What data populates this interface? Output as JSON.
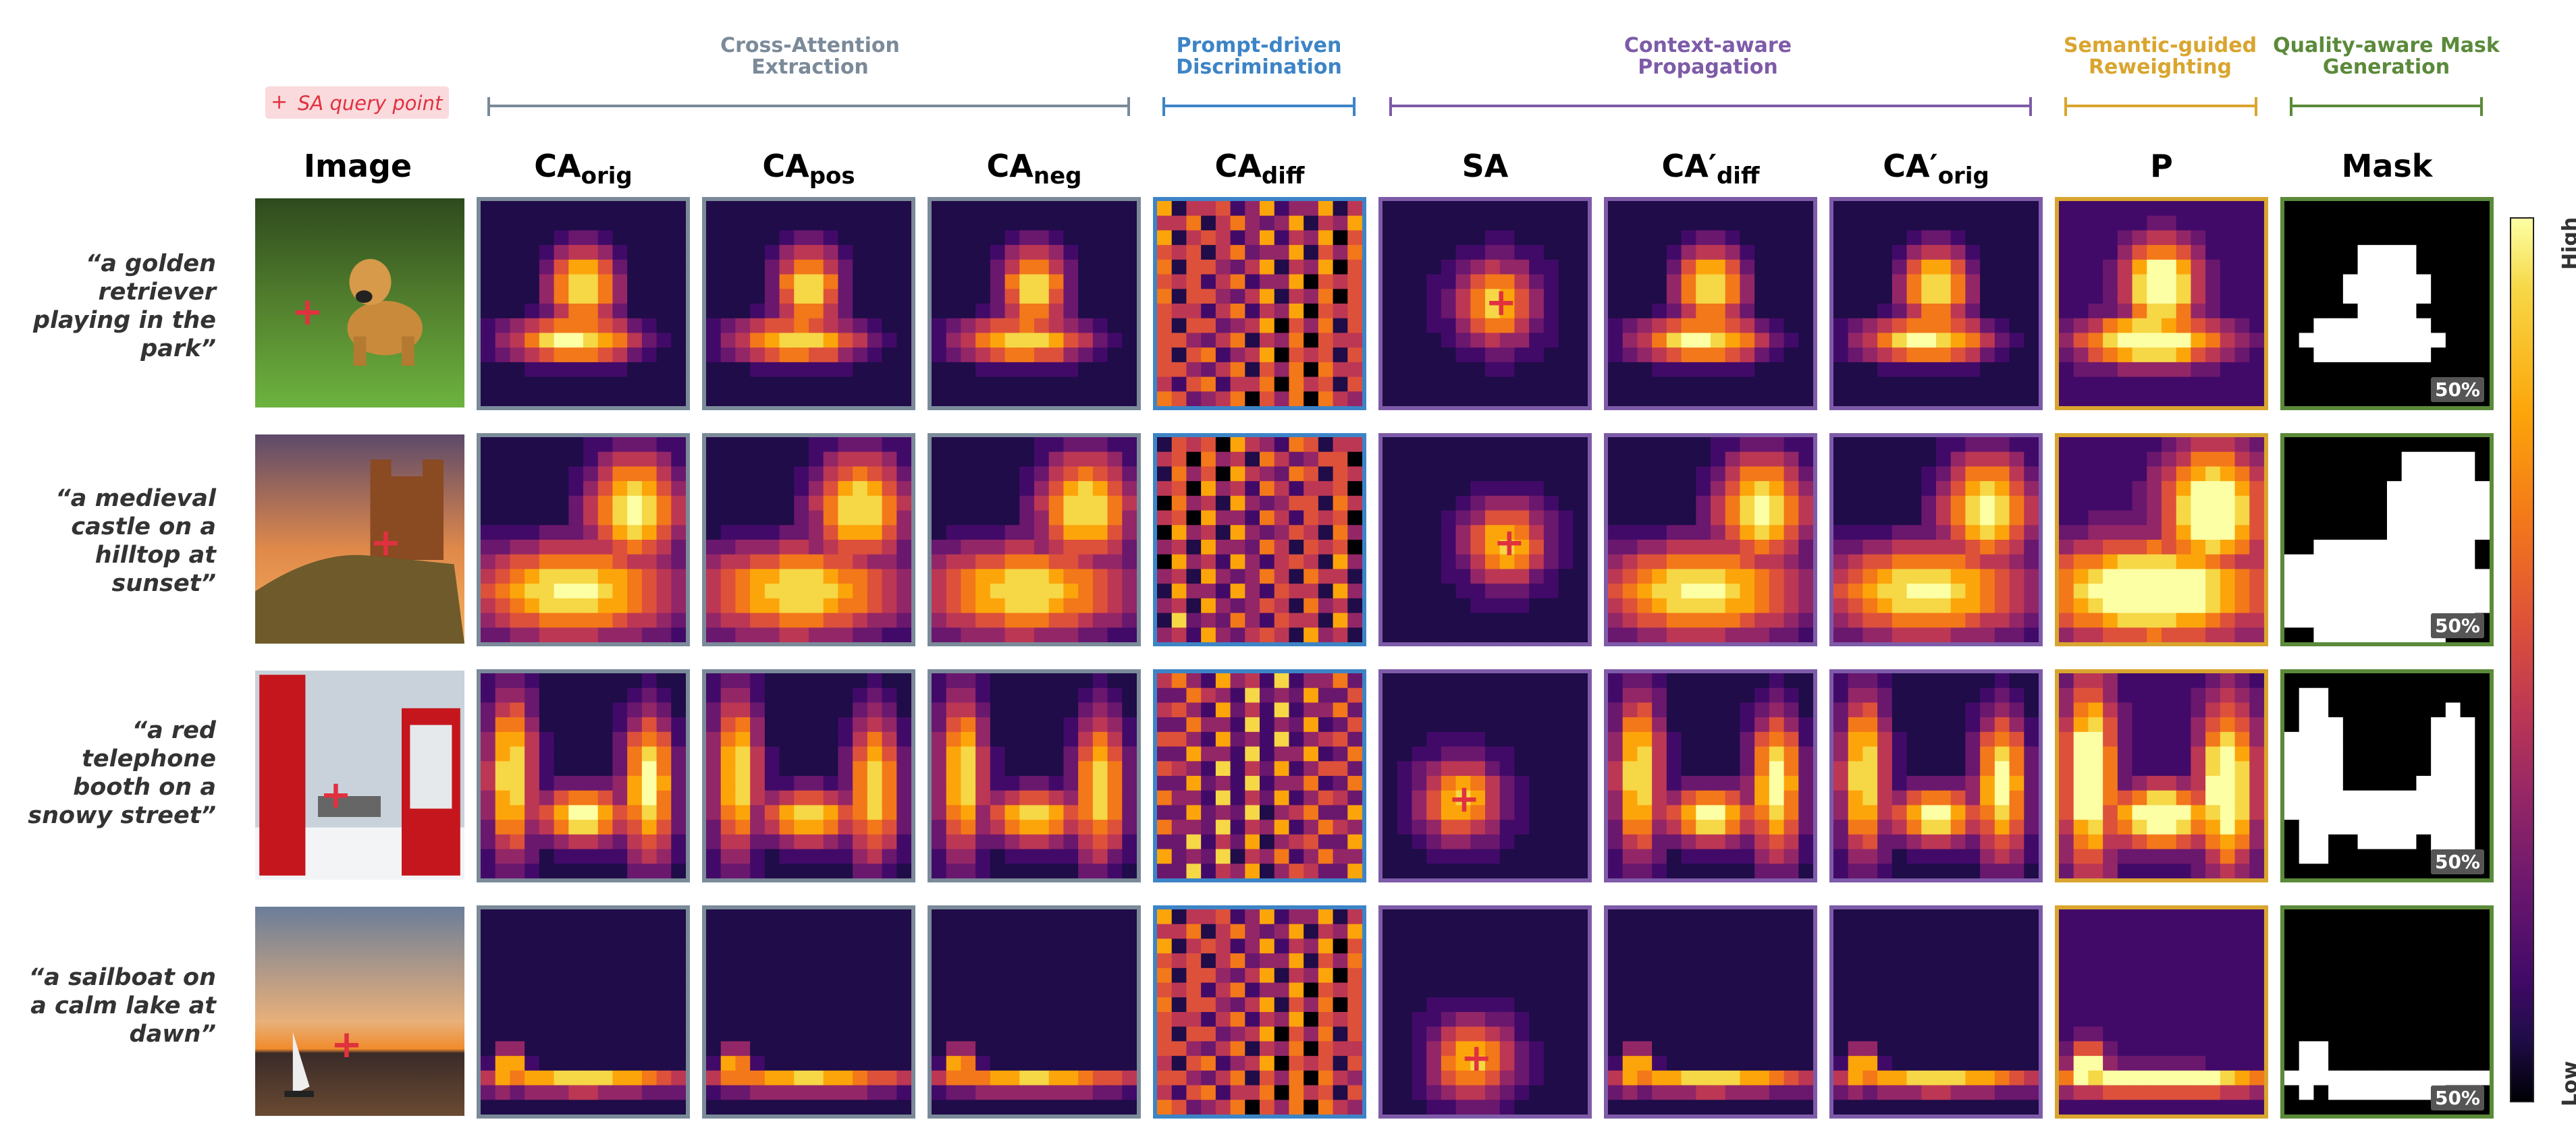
{
  "legend": {
    "marker": "+",
    "text": "SA query point",
    "color": "#e0313f"
  },
  "stages": [
    {
      "title": "Cross-Attention Extraction",
      "color": "#7b8a99"
    },
    {
      "title": "Prompt-driven Discrimination",
      "color": "#3d84c6"
    },
    {
      "title": "Context-aware Propagation",
      "color": "#7e5ba8"
    },
    {
      "title": "Semantic-guided Reweighting",
      "color": "#d9a52e"
    },
    {
      "title": "Quality-aware Mask Generation",
      "color": "#5b8a3a"
    }
  ],
  "columns": [
    {
      "main": "Image",
      "sub": ""
    },
    {
      "main": "CA",
      "sub": "orig"
    },
    {
      "main": "CA",
      "sub": "pos"
    },
    {
      "main": "CA",
      "sub": "neg"
    },
    {
      "main": "CA",
      "sub": "diff"
    },
    {
      "main": "SA",
      "sub": ""
    },
    {
      "main": "CA′",
      "sub": "diff"
    },
    {
      "main": "CA′",
      "sub": "orig"
    },
    {
      "main": "P",
      "sub": ""
    },
    {
      "main": "Mask",
      "sub": ""
    }
  ],
  "rows": [
    {
      "prompt": "“a golden retriever playing in the park”",
      "mask_pct": "50%"
    },
    {
      "prompt": "“a medieval castle on a hilltop at sunset”",
      "mask_pct": "50%"
    },
    {
      "prompt": "“a red telephone booth on a snowy street”",
      "mask_pct": "50%"
    },
    {
      "prompt": "“a sailboat on a calm lake at dawn”",
      "mask_pct": "50%"
    }
  ],
  "colorbar": {
    "high": "High",
    "low": "Low",
    "colormap": "inferno"
  },
  "icons": [
    "query-point-marker",
    "golden-retriever-photo",
    "castle-photo",
    "telephone-booth-photo",
    "sailboat-photo"
  ]
}
